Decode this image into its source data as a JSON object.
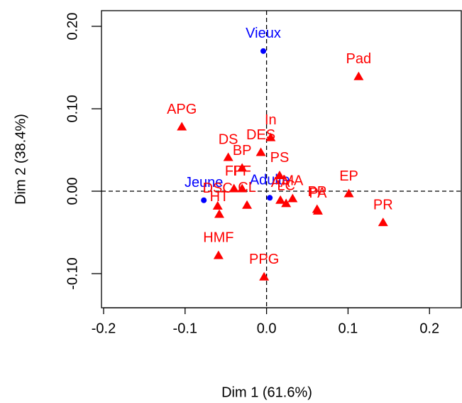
{
  "chart_data": {
    "type": "scatter",
    "xlabel": "Dim 1 (61.6%)",
    "ylabel": "Dim 2 (38.4%)",
    "xlim": [
      -0.2026,
      0.239
    ],
    "ylim": [
      -0.1414,
      0.219
    ],
    "xticks": [
      {
        "value": -0.2,
        "label": "-0.2"
      },
      {
        "value": -0.1,
        "label": "-0.1"
      },
      {
        "value": 0,
        "label": "0.0"
      },
      {
        "value": 0.1,
        "label": "0.1"
      },
      {
        "value": 0.2,
        "label": "0.2"
      }
    ],
    "yticks": [
      {
        "value": -0.1,
        "label": "-0.10"
      },
      {
        "value": 0,
        "label": "0.00"
      },
      {
        "value": 0.1,
        "label": "0.10"
      },
      {
        "value": 0.2,
        "label": "0.20"
      }
    ],
    "series": [
      {
        "color": "#0000ff",
        "marker": "circle",
        "labels": [
          "Vieux",
          "Jeune",
          "Adulte"
        ],
        "x": [
          -0.004,
          -0.077,
          0.004
        ],
        "values": [
          0.17,
          -0.011,
          -0.008
        ]
      },
      {
        "color": "#ff0000",
        "marker": "triangle",
        "labels": [
          "Pad",
          "APG",
          "In",
          "DES",
          "DS",
          "BP",
          "PS",
          "FP",
          "PF",
          "DSC",
          "CL",
          "HT",
          "AA",
          "LC",
          "MA",
          "PA",
          "PP",
          "EP",
          "PR",
          "HMF",
          "PPG"
        ],
        "x": [
          0.113,
          -0.104,
          0.005,
          -0.007,
          -0.047,
          -0.03,
          0.016,
          -0.04,
          -0.03,
          -0.06,
          -0.024,
          -0.058,
          0.017,
          0.024,
          0.032,
          0.063,
          0.062,
          0.101,
          0.143,
          -0.059,
          -0.003
        ],
        "values": [
          0.139,
          0.078,
          0.065,
          0.047,
          0.041,
          0.028,
          0.019,
          0.003,
          0.003,
          -0.018,
          -0.017,
          -0.028,
          -0.011,
          -0.015,
          -0.009,
          -0.024,
          -0.022,
          -0.003,
          -0.038,
          -0.078,
          -0.104
        ]
      }
    ]
  }
}
